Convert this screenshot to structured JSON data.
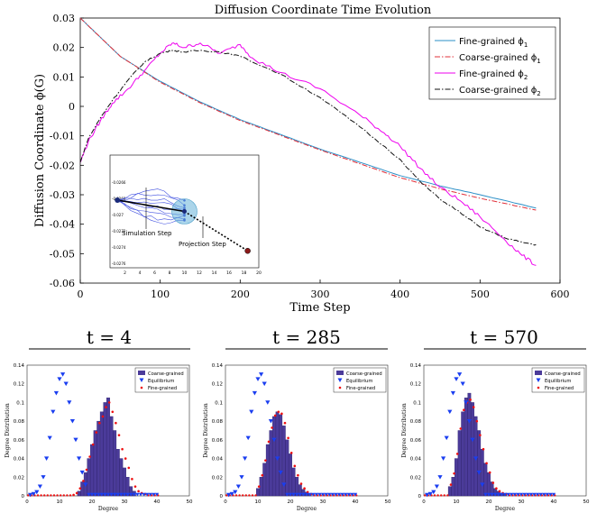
{
  "chart_data": [
    {
      "type": "line",
      "title": "Diffusion Coordinate Time Evolution",
      "xlabel": "Time Step",
      "ylabel": "Diffusion Coordinate ϕ(G)",
      "xlim": [
        0,
        600
      ],
      "ylim": [
        -0.06,
        0.03
      ],
      "xticks": [
        0,
        100,
        200,
        300,
        400,
        500,
        600
      ],
      "yticks": [
        -0.06,
        -0.05,
        -0.04,
        -0.03,
        -0.02,
        -0.01,
        0,
        0.01,
        0.02,
        0.03
      ],
      "xtick_labels": [
        "0",
        "100",
        "200",
        "300",
        "400",
        "500",
        "600"
      ],
      "ytick_labels": [
        "-0.06",
        "-0.05",
        "-0.04",
        "-0.03",
        "-0.02",
        "-0.01",
        "0",
        "0.01",
        "0.02",
        "0.03"
      ],
      "legend_position": "top-right",
      "series": [
        {
          "name": "Fine-grained ϕ",
          "subscript": "1",
          "color": "#2b8fc7",
          "dash": "solid",
          "x": [
            0,
            25,
            50,
            100,
            150,
            200,
            250,
            300,
            350,
            400,
            450,
            500,
            570
          ],
          "y": [
            0.03,
            0.0235,
            0.017,
            0.0085,
            0.0015,
            -0.0045,
            -0.0095,
            -0.0145,
            -0.019,
            -0.0235,
            -0.027,
            -0.03,
            -0.0345
          ]
        },
        {
          "name": "Coarse-grained ϕ",
          "subscript": "1",
          "color": "#e0303a",
          "dash": "dashdot",
          "x": [
            0,
            25,
            50,
            100,
            150,
            200,
            250,
            300,
            350,
            400,
            450,
            500,
            570
          ],
          "y": [
            0.03,
            0.0235,
            0.017,
            0.0082,
            0.0012,
            -0.0048,
            -0.0098,
            -0.0148,
            -0.0195,
            -0.0242,
            -0.028,
            -0.0312,
            -0.0352
          ]
        },
        {
          "name": "Fine-grained ϕ",
          "subscript": "2",
          "color": "#ee00ee",
          "dash": "solid",
          "x": [
            0,
            10,
            25,
            40,
            60,
            80,
            100,
            115,
            130,
            150,
            175,
            200,
            215,
            250,
            300,
            350,
            380,
            400,
            425,
            450,
            475,
            500,
            530,
            550,
            570
          ],
          "y": [
            -0.019,
            -0.012,
            -0.005,
            0.001,
            0.006,
            0.012,
            0.018,
            0.0215,
            0.02,
            0.0215,
            0.018,
            0.021,
            0.0165,
            0.0115,
            0.006,
            -0.003,
            -0.009,
            -0.0135,
            -0.021,
            -0.0275,
            -0.032,
            -0.0375,
            -0.045,
            -0.05,
            -0.054
          ]
        },
        {
          "name": "Coarse-grained ϕ",
          "subscript": "2",
          "color": "#111111",
          "dash": "dashdot",
          "x": [
            0,
            10,
            25,
            40,
            60,
            80,
            100,
            115,
            130,
            150,
            175,
            200,
            250,
            300,
            350,
            400,
            425,
            450,
            475,
            500,
            530,
            550,
            570
          ],
          "y": [
            -0.019,
            -0.011,
            -0.004,
            0.002,
            0.009,
            0.015,
            0.018,
            0.019,
            0.0185,
            0.019,
            0.0185,
            0.017,
            0.011,
            0.003,
            -0.007,
            -0.018,
            -0.0255,
            -0.0315,
            -0.036,
            -0.041,
            -0.0445,
            -0.046,
            -0.047
          ]
        }
      ],
      "inset": {
        "xlim": [
          0,
          20
        ],
        "xticks": [
          2,
          4,
          6,
          8,
          10,
          12,
          14,
          16,
          18,
          20
        ],
        "ytick_labels": [
          "-0.0266",
          "-0.0268",
          "-0.027",
          "-0.0272",
          "-0.0274",
          "-0.0276"
        ],
        "annotations": [
          "Simulation Step",
          "Projection Step"
        ],
        "trajectory_start": [
          1,
          0.4
        ],
        "trajectory_end": [
          10,
          0.5
        ],
        "projection_end": [
          18.5,
          0.85
        ]
      }
    },
    {
      "type": "bar",
      "heading": "t = 4",
      "xlabel": "Degree",
      "ylabel": "Degree Distribution",
      "xlim": [
        0,
        50
      ],
      "ylim": [
        0,
        0.14
      ],
      "xticks": [
        0,
        10,
        20,
        30,
        40,
        50
      ],
      "yticks": [
        0,
        0.02,
        0.04,
        0.06,
        0.08,
        0.1,
        0.12,
        0.14
      ],
      "legend": [
        "Coarse-grained",
        "Equilibrium",
        "Fine-grained"
      ],
      "degrees": [
        16,
        17,
        18,
        19,
        20,
        21,
        22,
        23,
        24,
        25,
        26,
        27,
        28,
        29,
        30,
        31,
        32,
        33
      ],
      "coarse": [
        0.005,
        0.015,
        0.025,
        0.04,
        0.055,
        0.07,
        0.08,
        0.09,
        0.1,
        0.105,
        0.085,
        0.07,
        0.05,
        0.04,
        0.03,
        0.02,
        0.01,
        0.005
      ],
      "fine_x": [
        14,
        15,
        16,
        17,
        18,
        19,
        20,
        21,
        22,
        23,
        24,
        25,
        26,
        27,
        28,
        29,
        30,
        31,
        32,
        33,
        34,
        35,
        36
      ],
      "fine": [
        0.001,
        0.003,
        0.008,
        0.016,
        0.028,
        0.042,
        0.055,
        0.068,
        0.078,
        0.085,
        0.095,
        0.1,
        0.09,
        0.078,
        0.065,
        0.05,
        0.04,
        0.03,
        0.018,
        0.01,
        0.005,
        0.003,
        0.002
      ],
      "equil_x": [
        1,
        2,
        3,
        4,
        5,
        6,
        7,
        8,
        9,
        10,
        11,
        12,
        13,
        14,
        15,
        16,
        17,
        18
      ],
      "equil": [
        0.001,
        0.002,
        0.004,
        0.01,
        0.02,
        0.04,
        0.062,
        0.09,
        0.11,
        0.125,
        0.13,
        0.12,
        0.1,
        0.08,
        0.06,
        0.04,
        0.025,
        0.012
      ]
    },
    {
      "type": "bar",
      "heading": "t = 285",
      "xlabel": "Degree",
      "ylabel": "Degree Distribution",
      "xlim": [
        0,
        50
      ],
      "ylim": [
        0,
        0.14
      ],
      "xticks": [
        0,
        10,
        20,
        30,
        40,
        50
      ],
      "yticks": [
        0,
        0.02,
        0.04,
        0.06,
        0.08,
        0.1,
        0.12,
        0.14
      ],
      "legend": [
        "Coarse-grained",
        "Equilibrium",
        "Fine-grained"
      ],
      "degrees": [
        10,
        11,
        12,
        13,
        14,
        15,
        16,
        17,
        18,
        19,
        20,
        21,
        22,
        23,
        24,
        25,
        26
      ],
      "coarse": [
        0.008,
        0.02,
        0.035,
        0.055,
        0.07,
        0.085,
        0.09,
        0.087,
        0.075,
        0.06,
        0.045,
        0.03,
        0.02,
        0.012,
        0.007,
        0.004,
        0.002
      ],
      "fine_x": [
        10,
        11,
        12,
        13,
        14,
        15,
        16,
        17,
        18,
        19,
        20,
        21,
        22,
        23,
        24,
        25,
        26
      ],
      "fine": [
        0.01,
        0.022,
        0.038,
        0.058,
        0.073,
        0.086,
        0.09,
        0.088,
        0.078,
        0.062,
        0.046,
        0.032,
        0.022,
        0.013,
        0.008,
        0.004,
        0.002
      ],
      "equil_x": [
        1,
        2,
        3,
        4,
        5,
        6,
        7,
        8,
        9,
        10,
        11,
        12,
        13,
        14,
        15,
        16,
        17,
        18
      ],
      "equil": [
        0.001,
        0.002,
        0.004,
        0.01,
        0.02,
        0.04,
        0.062,
        0.09,
        0.11,
        0.125,
        0.13,
        0.12,
        0.1,
        0.08,
        0.06,
        0.04,
        0.025,
        0.012
      ]
    },
    {
      "type": "bar",
      "heading": "t = 570",
      "xlabel": "Degree",
      "ylabel": "Degree Distribution",
      "xlim": [
        0,
        50
      ],
      "ylim": [
        0,
        0.14
      ],
      "xticks": [
        0,
        10,
        20,
        30,
        40,
        50
      ],
      "yticks": [
        0,
        0.02,
        0.04,
        0.06,
        0.08,
        0.1,
        0.12,
        0.14
      ],
      "legend": [
        "Coarse-grained",
        "Equilibrium",
        "Fine-grained"
      ],
      "degrees": [
        8,
        9,
        10,
        11,
        12,
        13,
        14,
        15,
        16,
        17,
        18,
        19,
        20,
        21,
        22,
        23,
        24,
        25
      ],
      "coarse": [
        0.01,
        0.02,
        0.04,
        0.07,
        0.09,
        0.105,
        0.11,
        0.1,
        0.085,
        0.07,
        0.05,
        0.035,
        0.025,
        0.015,
        0.008,
        0.005,
        0.003,
        0.002
      ],
      "fine_x": [
        8,
        9,
        10,
        11,
        12,
        13,
        14,
        15,
        16,
        17,
        18,
        19,
        20,
        21,
        22,
        23,
        24,
        25
      ],
      "fine": [
        0.012,
        0.024,
        0.045,
        0.072,
        0.092,
        0.1,
        0.103,
        0.095,
        0.08,
        0.065,
        0.05,
        0.035,
        0.025,
        0.014,
        0.008,
        0.005,
        0.003,
        0.002
      ],
      "equil_x": [
        1,
        2,
        3,
        4,
        5,
        6,
        7,
        8,
        9,
        10,
        11,
        12,
        13,
        14,
        15,
        16,
        17,
        18
      ],
      "equil": [
        0.001,
        0.002,
        0.004,
        0.01,
        0.02,
        0.04,
        0.062,
        0.09,
        0.11,
        0.125,
        0.13,
        0.12,
        0.1,
        0.08,
        0.06,
        0.04,
        0.025,
        0.012
      ]
    }
  ]
}
